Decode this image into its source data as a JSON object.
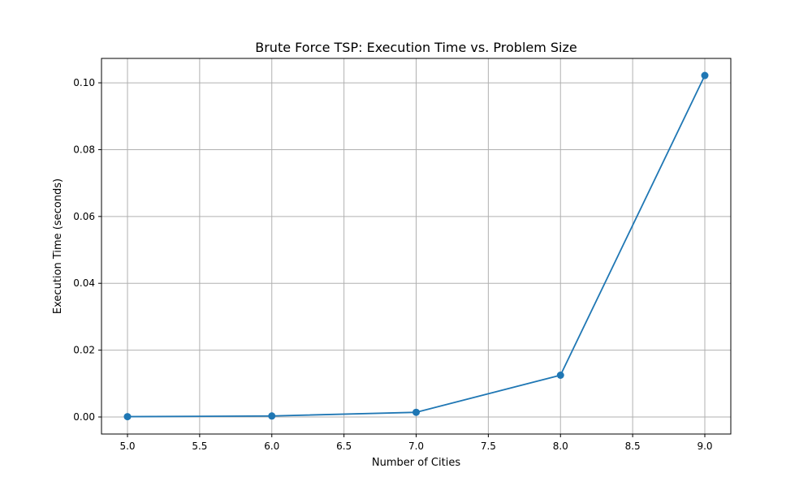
{
  "chart_data": {
    "type": "line",
    "title": "Brute Force TSP: Execution Time vs. Problem Size",
    "xlabel": "Number of Cities",
    "ylabel": "Execution Time (seconds)",
    "x": [
      5,
      6,
      7,
      8,
      9
    ],
    "series": [
      {
        "name": "",
        "values": [
          0.0001,
          0.0003,
          0.0014,
          0.0125,
          0.1022
        ]
      }
    ],
    "xlim": [
      4.82,
      9.18
    ],
    "ylim": [
      -0.0051,
      0.1073
    ],
    "xticks": [
      5.0,
      5.5,
      6.0,
      6.5,
      7.0,
      7.5,
      8.0,
      8.5,
      9.0
    ],
    "xtick_labels": [
      "5.0",
      "5.5",
      "6.0",
      "6.5",
      "7.0",
      "7.5",
      "8.0",
      "8.5",
      "9.0"
    ],
    "yticks": [
      0.0,
      0.02,
      0.04,
      0.06,
      0.08,
      0.1
    ],
    "ytick_labels": [
      "0.00",
      "0.02",
      "0.04",
      "0.06",
      "0.08",
      "0.10"
    ],
    "grid": true,
    "markers": true,
    "colors": {
      "line": "#1f77b4",
      "grid": "#b0b0b0",
      "axes": "#000000"
    }
  }
}
